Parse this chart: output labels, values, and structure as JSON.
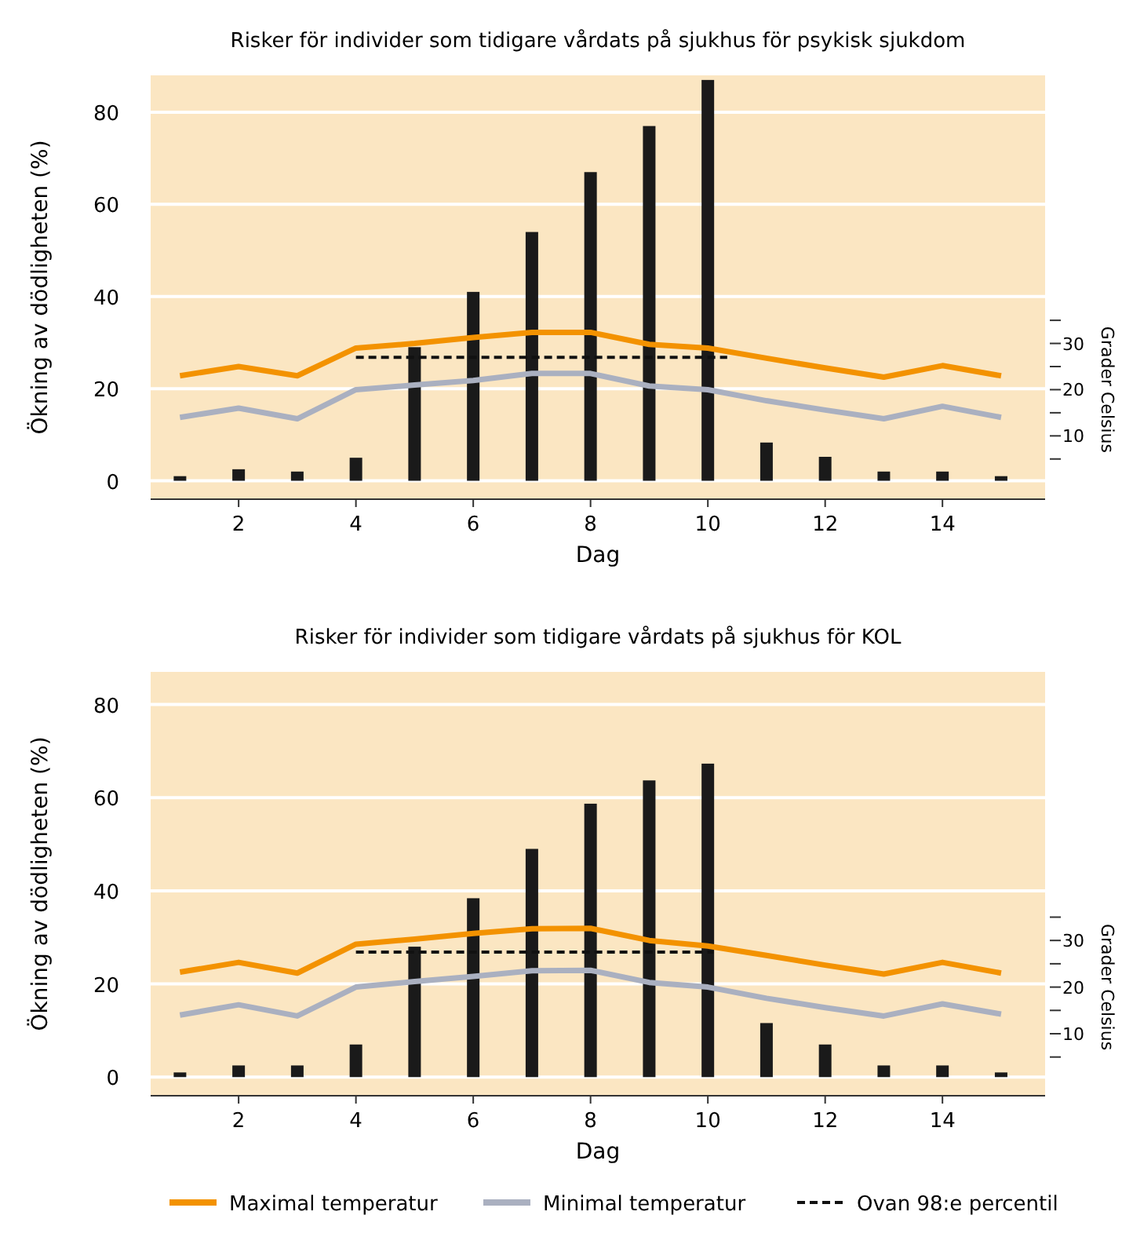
{
  "chart_data": [
    {
      "type": "bar",
      "title": "Risker för individer som tidigare vårdats på sjukhus för psykisk sjukdom",
      "xlabel": "Dag",
      "ylabel": "Ökning av dödligheten (%)",
      "y2label": "Grader Celsius",
      "x": [
        1,
        2,
        3,
        4,
        5,
        6,
        7,
        8,
        9,
        10,
        11,
        12,
        13,
        14,
        15
      ],
      "xlim": [
        0.5,
        15.75
      ],
      "xticks": [
        2,
        4,
        6,
        8,
        10,
        12,
        14
      ],
      "ylim": [
        -4,
        88
      ],
      "yticks": [
        0,
        20,
        40,
        60,
        80
      ],
      "y2lim": [
        -3.7,
        88
      ],
      "y2ticks": [
        {
          "value": 5,
          "label": null
        },
        10,
        {
          "value": 15,
          "label": null
        },
        20,
        {
          "value": 25,
          "label": null
        },
        30,
        {
          "value": 35,
          "label": null
        }
      ],
      "grid": "y",
      "legend": false,
      "series": [
        {
          "color": "#1a1a1a",
          "values": [
            1,
            2.5,
            2,
            5,
            29,
            41,
            54,
            67,
            77,
            87,
            8.3,
            5.2,
            2,
            2,
            1
          ]
        },
        {
          "type": "line",
          "axis": "y2",
          "color": "#f39200",
          "line_style": "solid",
          "values": [
            23,
            25,
            23,
            29,
            30,
            31.3,
            32.4,
            32.4,
            29.8,
            29,
            26.8,
            24.7,
            22.7,
            25.2,
            23
          ]
        },
        {
          "type": "line",
          "axis": "y2",
          "color": "#aab0c0",
          "line_style": "solid",
          "values": [
            14,
            16,
            13.7,
            20,
            21,
            22,
            23.5,
            23.5,
            20.8,
            20,
            17.6,
            15.6,
            13.7,
            16.4,
            14
          ]
        },
        {
          "type": "line",
          "axis": "y2",
          "color": "#111111",
          "line_style": "dashed",
          "x": [
            4,
            10.33
          ],
          "values": [
            27,
            27
          ]
        }
      ]
    },
    {
      "type": "bar",
      "title": "Risker för individer som tidigare vårdats på sjukhus för KOL",
      "xlabel": "Dag",
      "ylabel": "Ökning av dödligheten (%)",
      "y2label": "Grader Celsius",
      "x": [
        1,
        2,
        3,
        4,
        5,
        6,
        7,
        8,
        9,
        10,
        11,
        12,
        13,
        14,
        15
      ],
      "xlim": [
        0.5,
        15.75
      ],
      "xticks": [
        2,
        4,
        6,
        8,
        10,
        12,
        14
      ],
      "ylim": [
        -4,
        87
      ],
      "yticks": [
        0,
        20,
        40,
        60,
        80
      ],
      "y2lim": [
        -3.3,
        87.6
      ],
      "y2ticks": [
        {
          "value": 5,
          "label": null
        },
        10,
        {
          "value": 15,
          "label": null
        },
        20,
        {
          "value": 25,
          "label": null
        },
        30,
        {
          "value": 35,
          "label": null
        }
      ],
      "grid": "y",
      "legend": "bottom",
      "series": [
        {
          "color": "#1a1a1a",
          "values": [
            1,
            2.5,
            2.5,
            7,
            28,
            38.4,
            49,
            58.7,
            63.7,
            67.3,
            11.6,
            7,
            2.5,
            2.5,
            1
          ]
        },
        {
          "type": "line",
          "axis": "y2",
          "name": "Maximal temperatur",
          "color": "#f39200",
          "line_style": "solid",
          "values": [
            23.2,
            25.3,
            23,
            29.2,
            30.3,
            31.5,
            32.5,
            32.6,
            30,
            28.8,
            26.8,
            24.7,
            22.8,
            25.3,
            23
          ]
        },
        {
          "type": "line",
          "axis": "y2",
          "name": "Minimal temperatur",
          "color": "#aab0c0",
          "line_style": "solid",
          "values": [
            14,
            16.2,
            13.8,
            20,
            21.2,
            22.3,
            23.5,
            23.6,
            21,
            20,
            17.6,
            15.6,
            13.8,
            16.4,
            14.2
          ]
        },
        {
          "type": "line",
          "axis": "y2",
          "name": "Ovan 98:e percentil",
          "color": "#111111",
          "line_style": "dashed",
          "x": [
            4,
            10.1
          ],
          "values": [
            27.5,
            27.5
          ]
        }
      ]
    }
  ]
}
